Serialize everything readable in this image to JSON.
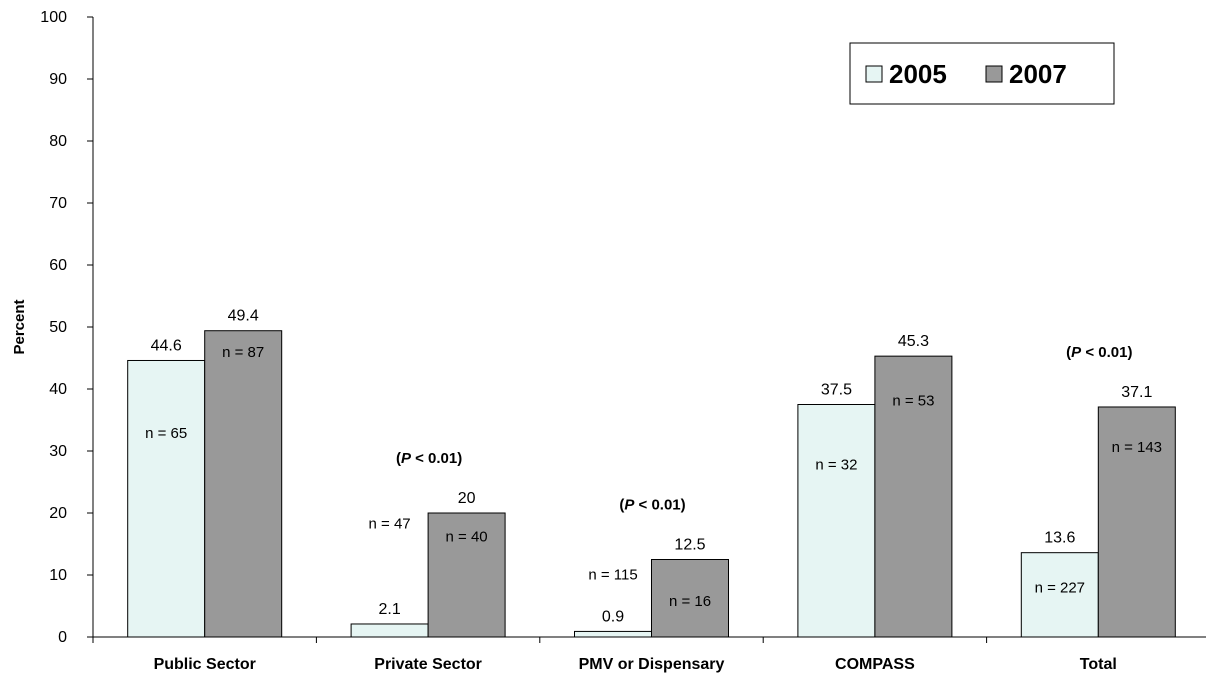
{
  "chart_data": {
    "type": "bar",
    "ylabel": "Percent",
    "ylim": [
      0,
      100
    ],
    "yticks": [
      "0",
      "10",
      "20",
      "30",
      "40",
      "50",
      "60",
      "70",
      "80",
      "90",
      "100"
    ],
    "categories": [
      "Public Sector",
      "Private Sector",
      "PMV or Dispensary",
      "COMPASS",
      "Total"
    ],
    "series": [
      {
        "name": "2005",
        "color": "#e6f5f3",
        "values": [
          44.6,
          2.1,
          0.9,
          37.5,
          13.6
        ],
        "value_labels": [
          "44.6",
          "2.1",
          "0.9",
          "37.5",
          "13.6"
        ],
        "n_labels": [
          "n = 65",
          "n = 47",
          "n = 115",
          "n = 32",
          "n = 227"
        ]
      },
      {
        "name": "2007",
        "color": "#999999",
        "values": [
          49.4,
          20,
          12.5,
          45.3,
          37.1
        ],
        "value_labels": [
          "49.4",
          "20",
          "12.5",
          "45.3",
          "37.1"
        ],
        "n_labels": [
          "n = 87",
          "n = 40",
          "n = 16",
          "n = 53",
          "n = 143"
        ]
      }
    ],
    "annotations": [
      "",
      "(P < 0.01)",
      "(P < 0.01)",
      "",
      "(P < 0.01)"
    ],
    "legend": {
      "placement": "top-right",
      "entries": [
        "2005",
        "2007"
      ]
    },
    "grid": false
  }
}
